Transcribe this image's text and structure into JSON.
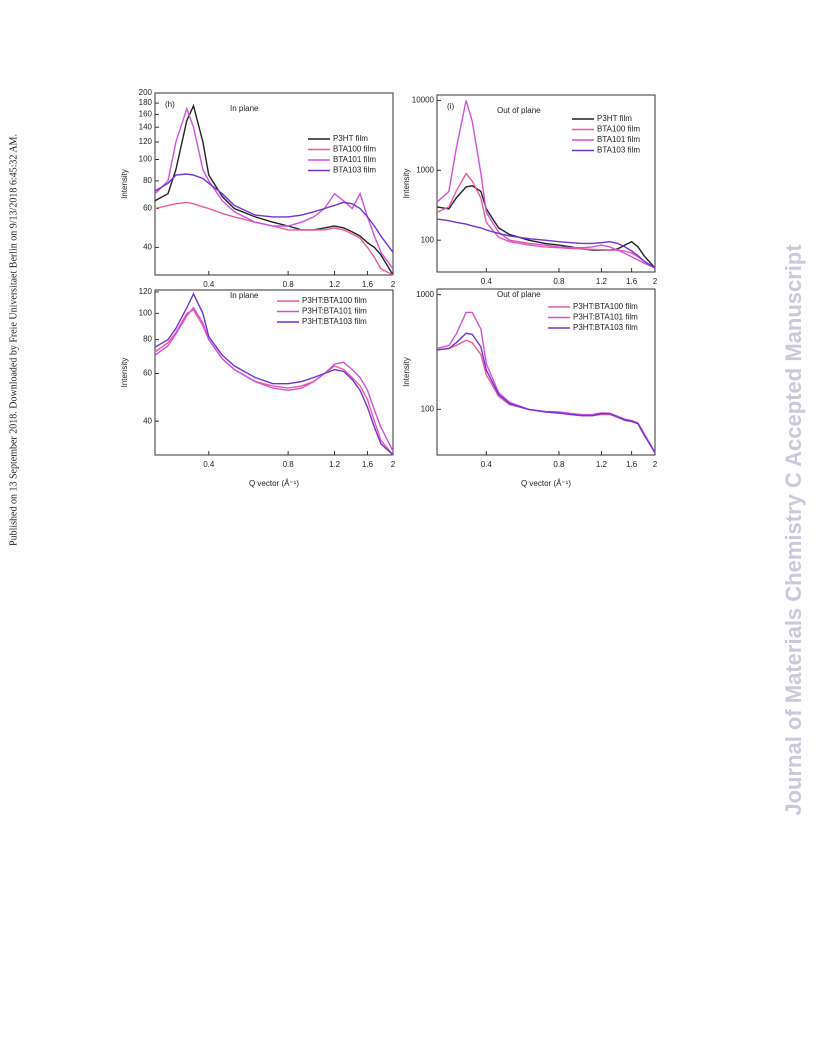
{
  "page": {
    "side_note": "Published on 13 September 2018. Downloaded by Freie Universitaet Berlin on 9/13/2018 6:45:32 AM.",
    "watermark": "Journal of Materials Chemistry C Accepted Manuscript"
  },
  "chart_data": [
    {
      "type": "line",
      "panel_label": "(h)",
      "annotation": "In plane",
      "ylabel": "Intensity",
      "xscale": "log",
      "yscale": "log",
      "legend": "upper right",
      "x": [
        0.25,
        0.28,
        0.3,
        0.33,
        0.35,
        0.38,
        0.4,
        0.45,
        0.5,
        0.6,
        0.7,
        0.8,
        0.9,
        1.0,
        1.1,
        1.2,
        1.3,
        1.4,
        1.5,
        1.6,
        1.7,
        1.8,
        2.0
      ],
      "xlim": [
        0.25,
        2
      ],
      "xticks": [
        0.4,
        0.8,
        1.2,
        1.6,
        2
      ],
      "ylim": [
        30,
        200
      ],
      "yticks": [
        40,
        60,
        80,
        100,
        120,
        140,
        160,
        180,
        200
      ],
      "series": [
        {
          "name": "P3HT film",
          "color": "#222222",
          "values": [
            65,
            70,
            90,
            150,
            175,
            120,
            85,
            68,
            60,
            55,
            52,
            50,
            48,
            48,
            49,
            50,
            49,
            47,
            45,
            42,
            40,
            37,
            30
          ]
        },
        {
          "name": "BTA100 film",
          "color": "#ec5a9a",
          "values": [
            60,
            62,
            63,
            64,
            63,
            61,
            60,
            57,
            55,
            52,
            50,
            48,
            48,
            48,
            48,
            49,
            48,
            46,
            44,
            40,
            36,
            32,
            30
          ]
        },
        {
          "name": "BTA101 film",
          "color": "#d052dc",
          "values": [
            70,
            80,
            120,
            170,
            140,
            90,
            80,
            65,
            58,
            52,
            50,
            50,
            52,
            55,
            60,
            70,
            65,
            60,
            70,
            55,
            45,
            38,
            32
          ]
        },
        {
          "name": "BTA103 film",
          "color": "#7034d4",
          "values": [
            72,
            78,
            85,
            86,
            85,
            82,
            78,
            70,
            62,
            56,
            55,
            55,
            56,
            58,
            60,
            62,
            64,
            63,
            60,
            55,
            50,
            45,
            38
          ]
        }
      ]
    },
    {
      "type": "line",
      "panel_label": "(i)",
      "annotation": "Out of plane",
      "ylabel": "Intensity",
      "xscale": "log",
      "yscale": "log",
      "legend": "upper right",
      "x": [
        0.25,
        0.28,
        0.3,
        0.33,
        0.35,
        0.38,
        0.4,
        0.45,
        0.5,
        0.6,
        0.7,
        0.8,
        0.9,
        1.0,
        1.1,
        1.2,
        1.3,
        1.4,
        1.5,
        1.6,
        1.7,
        1.8,
        2.0
      ],
      "xlim": [
        0.25,
        2
      ],
      "xticks": [
        0.4,
        0.8,
        1.2,
        1.6,
        2
      ],
      "ylim": [
        35,
        12000
      ],
      "yticks": [
        100,
        1000,
        10000
      ],
      "series": [
        {
          "name": "P3HT film",
          "color": "#222222",
          "values": [
            300,
            280,
            400,
            580,
            600,
            500,
            280,
            150,
            120,
            100,
            90,
            85,
            80,
            75,
            72,
            72,
            72,
            75,
            85,
            95,
            80,
            60,
            40
          ]
        },
        {
          "name": "BTA100 film",
          "color": "#ec5a9a",
          "values": [
            250,
            300,
            500,
            900,
            700,
            400,
            180,
            110,
            95,
            85,
            80,
            78,
            76,
            75,
            74,
            73,
            72,
            72,
            70,
            65,
            58,
            50,
            40
          ]
        },
        {
          "name": "BTA101 film",
          "color": "#d052dc",
          "values": [
            350,
            500,
            2000,
            10000,
            5000,
            900,
            250,
            130,
            100,
            90,
            85,
            80,
            78,
            78,
            80,
            85,
            80,
            72,
            65,
            58,
            52,
            47,
            40
          ]
        },
        {
          "name": "BTA103 film",
          "color": "#7034d4",
          "values": [
            200,
            190,
            180,
            170,
            160,
            150,
            140,
            125,
            115,
            105,
            100,
            95,
            92,
            90,
            90,
            92,
            95,
            90,
            80,
            70,
            60,
            50,
            40
          ]
        }
      ]
    },
    {
      "type": "line",
      "annotation": "In plane",
      "ylabel": "Intensity",
      "xlabel": "Q vector (Å⁻¹)",
      "xscale": "log",
      "yscale": "log",
      "legend": "upper right",
      "x": [
        0.25,
        0.28,
        0.3,
        0.33,
        0.35,
        0.38,
        0.4,
        0.45,
        0.5,
        0.6,
        0.7,
        0.8,
        0.9,
        1.0,
        1.1,
        1.2,
        1.3,
        1.4,
        1.5,
        1.6,
        1.7,
        1.8,
        2.0
      ],
      "xlim": [
        0.25,
        2
      ],
      "xticks": [
        0.4,
        0.8,
        1.2,
        1.6,
        2
      ],
      "ylim": [
        30,
        122
      ],
      "yticks": [
        40,
        60,
        80,
        100,
        120
      ],
      "series": [
        {
          "name": "P3HT:BTA100 film",
          "color": "#ec5a9a",
          "values": [
            72,
            78,
            85,
            100,
            103,
            90,
            80,
            68,
            62,
            56,
            54,
            53,
            54,
            56,
            60,
            64,
            62,
            58,
            54,
            48,
            40,
            34,
            30
          ]
        },
        {
          "name": "P3HT:BTA101 film",
          "color": "#d052dc",
          "values": [
            70,
            76,
            84,
            98,
            105,
            92,
            80,
            68,
            62,
            56,
            53,
            52,
            53,
            56,
            60,
            65,
            66,
            62,
            58,
            52,
            44,
            38,
            31
          ]
        },
        {
          "name": "P3HT:BTA103 film",
          "color": "#7034d4",
          "values": [
            75,
            80,
            88,
            105,
            118,
            100,
            82,
            70,
            64,
            58,
            55,
            55,
            56,
            58,
            60,
            62,
            61,
            57,
            52,
            45,
            38,
            33,
            30
          ]
        }
      ]
    },
    {
      "type": "line",
      "annotation": "Out of plane",
      "ylabel": "Intensity",
      "xlabel": "Q  vector (Å⁻¹)",
      "xscale": "log",
      "yscale": "log",
      "legend": "upper right",
      "x": [
        0.25,
        0.28,
        0.3,
        0.33,
        0.35,
        0.38,
        0.4,
        0.45,
        0.5,
        0.6,
        0.7,
        0.8,
        0.9,
        1.0,
        1.1,
        1.2,
        1.3,
        1.4,
        1.5,
        1.6,
        1.7,
        1.8,
        2.0
      ],
      "xlim": [
        0.25,
        2
      ],
      "xticks": [
        0.4,
        0.8,
        1.2,
        1.6,
        2
      ],
      "ylim": [
        40,
        1120
      ],
      "yticks": [
        100,
        1000
      ],
      "series": [
        {
          "name": "P3HT:BTA100 film",
          "color": "#ec5a9a",
          "values": [
            330,
            340,
            360,
            400,
            380,
            300,
            200,
            130,
            110,
            100,
            95,
            93,
            90,
            88,
            88,
            90,
            90,
            85,
            80,
            78,
            75,
            60,
            42
          ]
        },
        {
          "name": "P3HT:BTA101 film",
          "color": "#d052dc",
          "values": [
            340,
            360,
            450,
            700,
            700,
            500,
            250,
            140,
            115,
            100,
            96,
            95,
            92,
            90,
            90,
            93,
            92,
            87,
            82,
            80,
            76,
            62,
            42
          ]
        },
        {
          "name": "P3HT:BTA103 film",
          "color": "#7034d4",
          "values": [
            330,
            340,
            380,
            460,
            450,
            350,
            220,
            135,
            112,
            100,
            95,
            93,
            90,
            88,
            88,
            92,
            92,
            86,
            81,
            79,
            75,
            60,
            42
          ]
        }
      ]
    }
  ]
}
